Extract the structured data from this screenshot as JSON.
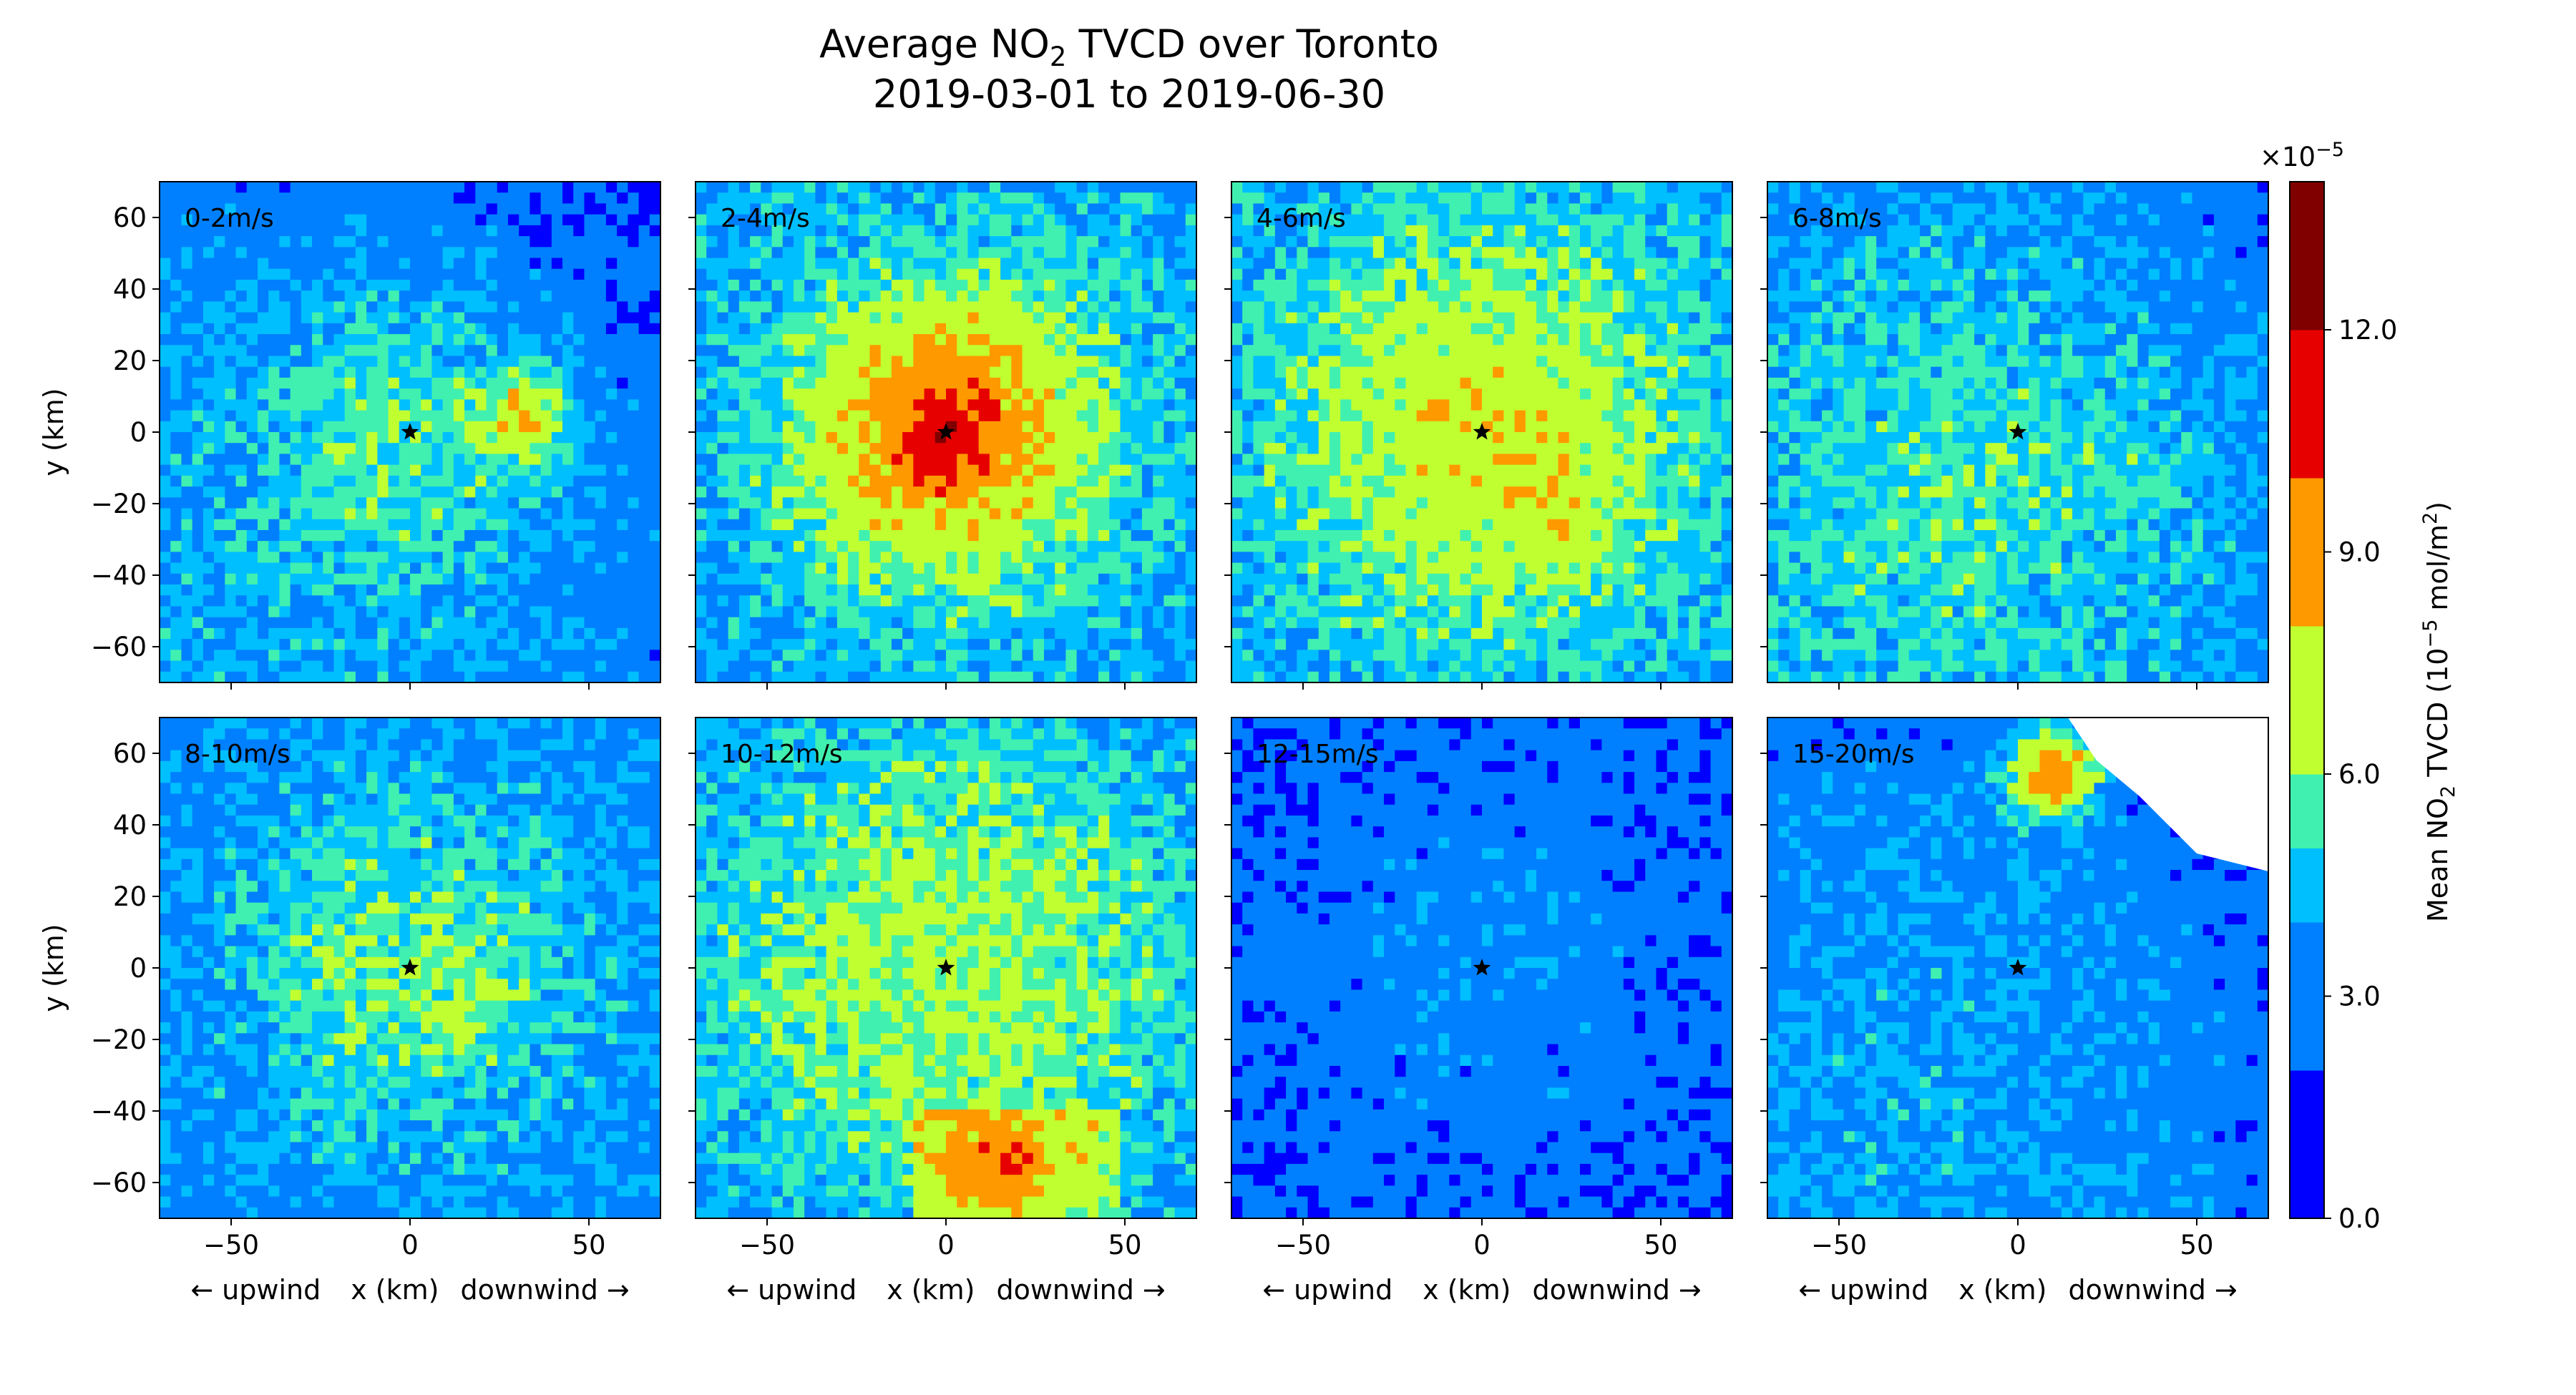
{
  "chart_data": {
    "type": "heatmap",
    "title": {
      "line1_prefix": "Average NO",
      "line1_sub": "2",
      "line1_suffix": " TVCD over Toronto",
      "line2": "2019-03-01 to 2019-06-30"
    },
    "xlabel": {
      "left": "← upwind",
      "center": "x (km)",
      "right": "downwind →"
    },
    "ylabel": "y (km)",
    "xlim": [
      -70,
      70
    ],
    "ylim": [
      -70,
      70
    ],
    "x_ticks": [
      -50,
      0,
      50
    ],
    "y_ticks": [
      60,
      40,
      20,
      0,
      -20,
      -40,
      -60
    ],
    "tick_labels": {
      "x": [
        "−50",
        "0",
        "50"
      ],
      "y": [
        "60",
        "40",
        "20",
        "0",
        "−20",
        "−40",
        "−60"
      ]
    },
    "panels": [
      {
        "label": "0-2m/s",
        "center_value": 5.5,
        "hotspot": {
          "x": 32,
          "y": 5,
          "value": 8.5
        }
      },
      {
        "label": "2-4m/s",
        "center_value": 11.0,
        "hotspot": {
          "x": 0,
          "y": 0,
          "value": 11.5
        }
      },
      {
        "label": "4-6m/s",
        "center_value": 8.5,
        "hotspot": {
          "x": 20,
          "y": -25,
          "value": 8.0
        }
      },
      {
        "label": "6-8m/s",
        "center_value": 5.0,
        "hotspot": {
          "x": 25,
          "y": -5,
          "value": 5.5
        }
      },
      {
        "label": "8-10m/s",
        "center_value": 6.5,
        "hotspot": {
          "x": 15,
          "y": -5,
          "value": 6.0
        }
      },
      {
        "label": "10-12m/s",
        "center_value": 7.0,
        "hotspot": {
          "x": 15,
          "y": -55,
          "value": 8.5
        }
      },
      {
        "label": "12-15m/s",
        "center_value": 3.0,
        "hotspot": {
          "x": 20,
          "y": 0,
          "value": 3.5
        }
      },
      {
        "label": "15-20m/s",
        "center_value": 3.5,
        "hotspot": {
          "x": 10,
          "y": 55,
          "value": 11.0
        }
      }
    ],
    "colorbar": {
      "label_prefix": "Mean NO",
      "label_sub": "2",
      "label_middle": " TVCD (10",
      "label_sup": "−5",
      "label_suffix": " mol/m",
      "label_sup2": "2",
      "label_close": ")",
      "multiplier_base": "×10",
      "multiplier_exp": "−5",
      "range": [
        0,
        14
      ],
      "boundaries": [
        0,
        2,
        4,
        5,
        6,
        8,
        10,
        12,
        14
      ],
      "ticks": [
        0.0,
        3.0,
        6.0,
        9.0,
        12.0
      ],
      "tick_labels": [
        "0.0",
        "3.0",
        "6.0",
        "9.0",
        "12.0"
      ],
      "colors": [
        "#0000ff",
        "#0080ff",
        "#00bfff",
        "#40f0b0",
        "#c0ff30",
        "#ff9900",
        "#e60000",
        "#800000"
      ]
    },
    "marker": "source location (0, 0)"
  }
}
